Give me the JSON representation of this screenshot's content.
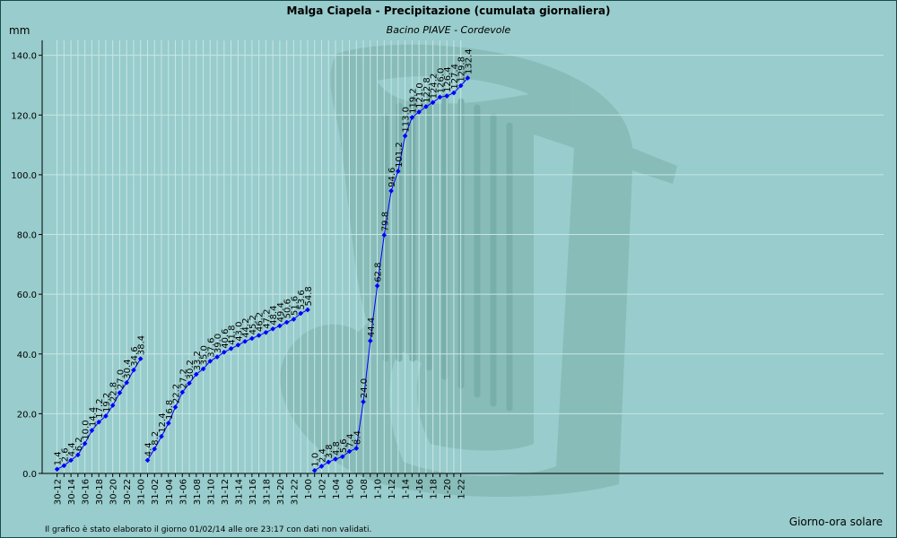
{
  "chart": {
    "title": "Malga Ciapela - Precipitazione (cumulata giornaliera)",
    "subtitle": "Bacino PIAVE - Cordevole",
    "y_unit": "mm",
    "x_title": "Giorno-ora solare",
    "footer": "Il grafico è stato elaborato il giorno 01/02/14 alle ore 23:17 con dati non validati.",
    "logo_icon": "harp-watermark-icon",
    "colors": {
      "line": "#0000ff",
      "grid": "#c8e6e6",
      "axis": "#000000",
      "text": "#000000"
    }
  },
  "chart_data": {
    "type": "line",
    "title": "Malga Ciapela - Precipitazione (cumulata giornaliera)",
    "subtitle": "Bacino PIAVE - Cordevole",
    "xlabel": "Giorno-ora solare",
    "ylabel": "mm",
    "ylim": [
      0,
      145
    ],
    "yticks": [
      "0.0",
      "20.0",
      "40.0",
      "60.0",
      "80.0",
      "100.0",
      "120.0",
      "140.0"
    ],
    "xticks": [
      "30-12",
      "30-14",
      "30-16",
      "30-18",
      "30-20",
      "30-22",
      "31-00",
      "31-02",
      "31-04",
      "31-06",
      "31-08",
      "31-10",
      "31-12",
      "31-14",
      "31-16",
      "31-18",
      "31-20",
      "31-22",
      "1-00",
      "1-02",
      "1-04",
      "1-06",
      "1-08",
      "1-10",
      "1-12",
      "1-14",
      "1-16",
      "1-18",
      "1-20",
      "1-22"
    ],
    "grid": true,
    "series": [
      {
        "segments": [
          {
            "x": [
              "30-12",
              "30-13",
              "30-14",
              "30-15",
              "30-16",
              "30-17",
              "30-18",
              "30-19",
              "30-20",
              "30-21",
              "30-22",
              "30-23",
              "31-00"
            ],
            "values": [
              1.4,
              2.6,
              4.4,
              6.2,
              10.0,
              14.4,
              17.2,
              19.2,
              22.8,
              27.0,
              30.4,
              34.6,
              38.4
            ]
          },
          {
            "x": [
              "31-01",
              "31-02",
              "31-03",
              "31-04",
              "31-05",
              "31-06",
              "31-07",
              "31-08",
              "31-09",
              "31-10",
              "31-11",
              "31-12",
              "31-13",
              "31-14",
              "31-15",
              "31-16",
              "31-17",
              "31-18",
              "31-19",
              "31-20",
              "31-21",
              "31-22",
              "31-23",
              "1-00"
            ],
            "values": [
              4.4,
              8.2,
              12.4,
              16.8,
              22.2,
              27.2,
              30.2,
              33.2,
              35.0,
              37.6,
              39.0,
              40.6,
              41.8,
              43.0,
              44.2,
              45.2,
              46.2,
              47.2,
              48.4,
              49.4,
              50.6,
              51.6,
              53.6,
              54.8
            ]
          },
          {
            "x": [
              "1-01",
              "1-02",
              "1-03",
              "1-04",
              "1-05",
              "1-06",
              "1-07",
              "1-08",
              "1-09",
              "1-10",
              "1-11",
              "1-12",
              "1-13",
              "1-14",
              "1-15",
              "1-16",
              "1-17",
              "1-18",
              "1-19",
              "1-20",
              "1-21",
              "1-22",
              "1-23"
            ],
            "values": [
              1.0,
              2.4,
              3.8,
              4.8,
              5.6,
              7.4,
              8.4,
              24.0,
              44.4,
              62.8,
              79.8,
              94.6,
              101.2,
              113.0,
              119.2,
              121.0,
              122.8,
              124.2,
              126.0,
              126.4,
              127.4,
              129.8,
              132.4
            ]
          }
        ]
      }
    ],
    "value_labels": [
      [
        "1.4",
        "2.6",
        "4.4",
        "6.2",
        "10.0",
        "14.4",
        "17.2",
        "19.2",
        "22.8",
        "27.0",
        "30.4",
        "34.6",
        "38.4"
      ],
      [
        "4.4",
        "8.2",
        "12.4",
        "16.8",
        "22.2",
        "27.2",
        "30.2",
        "33.2",
        "35.0",
        "37.6",
        "39.0",
        "40.6",
        "41.8",
        "43.0",
        "44.2",
        "45.2",
        "46.2",
        "47.2",
        "48.4",
        "49.4",
        "50.6",
        "51.6",
        "53.6",
        "54.8"
      ],
      [
        "1.0",
        "2.4",
        "3.8",
        "4.8",
        "5.6",
        "7.4",
        "8.4",
        "24.0",
        "44.4",
        "62.8",
        "79.8",
        "94.6",
        "101.2",
        "113.0",
        "119.2",
        "121.0",
        "122.8",
        "124.2",
        "126.0",
        "126.4",
        "127.4",
        "129.8",
        "132.4"
      ]
    ]
  }
}
